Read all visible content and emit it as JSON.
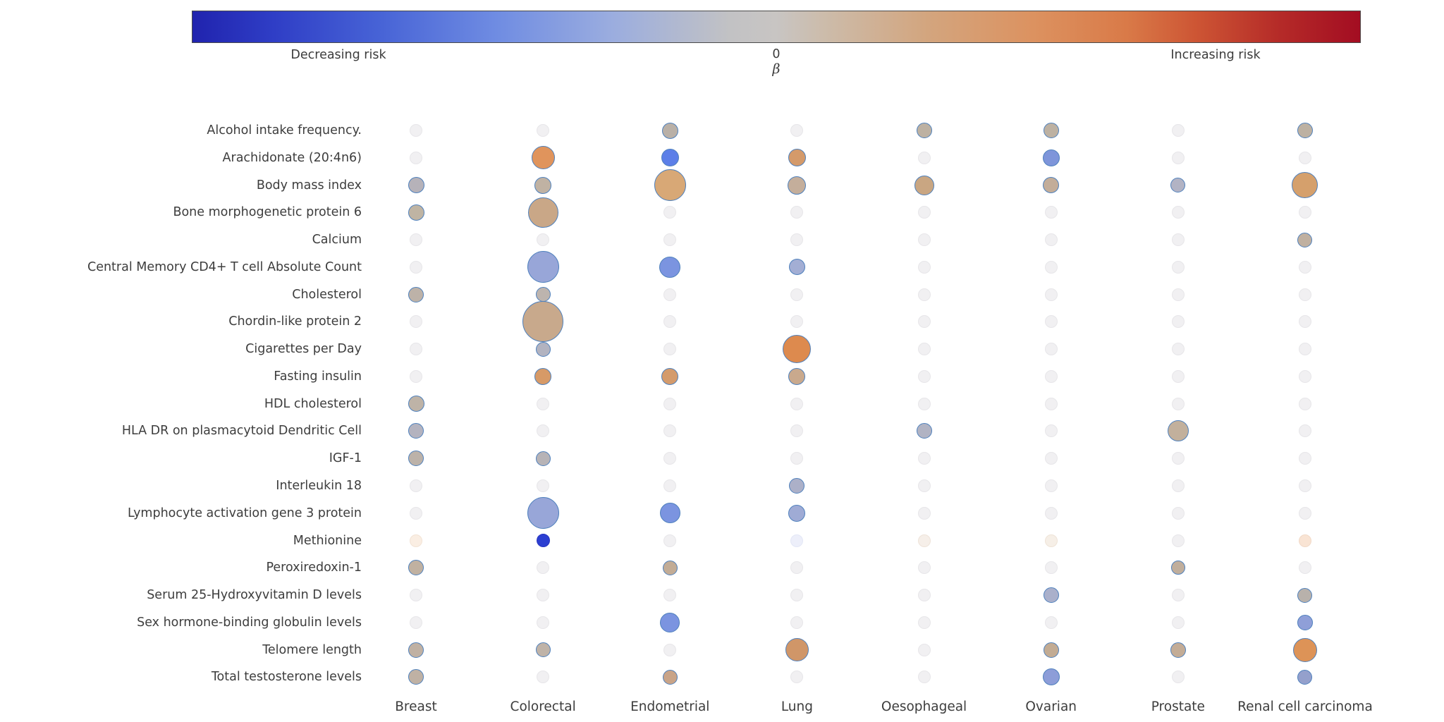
{
  "chart_data": {
    "type": "bubble-matrix",
    "title": "",
    "description": "Bubble matrix of exposures (rows) vs cancer sites (columns); bubble colour encodes beta effect direction (blue decreasing risk, red increasing risk), bubble size encodes magnitude/strength",
    "colorbar": {
      "label_left": "Decreasing risk",
      "tick_center": "0",
      "axis_label": "β",
      "label_right": "Increasing risk",
      "gradient_stops": [
        [
          "#2023ae",
          0
        ],
        [
          "#2f3ec6",
          7
        ],
        [
          "#4763d6",
          16
        ],
        [
          "#6f8ce2",
          26
        ],
        [
          "#9baddf",
          36
        ],
        [
          "#c2c2c4",
          46
        ],
        [
          "#c8c5c3",
          50
        ],
        [
          "#ccbcab",
          54
        ],
        [
          "#d3a57e",
          63
        ],
        [
          "#dc9260",
          72
        ],
        [
          "#d97a48",
          80
        ],
        [
          "#cd5534",
          86
        ],
        [
          "#b52b28",
          93
        ],
        [
          "#a30d22",
          100
        ]
      ]
    },
    "columns": [
      "Breast",
      "Colorectal",
      "Endometrial",
      "Lung",
      "Oesophageal",
      "Ovarian",
      "Prostate",
      "Renal cell carcinoma"
    ],
    "rows": [
      "Alcohol intake frequency.",
      "Arachidonate (20:4n6)",
      "Body mass index",
      "Bone morphogenetic protein 6",
      "Calcium",
      "Central Memory CD4+ T cell Absolute Count",
      "Cholesterol",
      "Chordin-like protein 2",
      "Cigarettes per Day",
      "Fasting insulin",
      "HDL cholesterol",
      "HLA DR on plasmacytoid Dendritic Cell",
      "IGF-1",
      "Interleukin 18",
      "Lymphocyte activation gene 3 protein",
      "Methionine",
      "Peroxiredoxin-1",
      "Serum 25-Hydroxyvitamin D levels",
      "Sex hormone-binding globulin levels",
      "Telomere length",
      "Total testosterone levels"
    ],
    "default_bubble": {
      "d": 18,
      "fill": "#f1f0f2",
      "stroke": "#e7e6e9"
    },
    "visible_stroke": "#4f81bd",
    "cells": [
      [
        null,
        null,
        {
          "d": 23,
          "fill": "#b9b0a7"
        },
        null,
        {
          "d": 22,
          "fill": "#bdb1a2"
        },
        {
          "d": 22,
          "fill": "#bdb1a2"
        },
        null,
        {
          "d": 22,
          "fill": "#bdb1a2"
        }
      ],
      [
        null,
        {
          "d": 33,
          "fill": "#e0945c"
        },
        {
          "d": 25,
          "fill": "#5c7fe8"
        },
        {
          "d": 25,
          "fill": "#d49a6a"
        },
        null,
        {
          "d": 24,
          "fill": "#7e95da"
        },
        null,
        null
      ],
      [
        {
          "d": 23,
          "fill": "#b6b2b9"
        },
        {
          "d": 24,
          "fill": "#c0b2a3"
        },
        {
          "d": 45,
          "fill": "#d8a876"
        },
        {
          "d": 26,
          "fill": "#c4ae9b"
        },
        {
          "d": 28,
          "fill": "#c9a682"
        },
        {
          "d": 23,
          "fill": "#c3ad99"
        },
        {
          "d": 21,
          "fill": "#b2b3c4"
        },
        {
          "d": 37,
          "fill": "#d5a06c"
        }
      ],
      [
        {
          "d": 23,
          "fill": "#bfb4a3"
        },
        {
          "d": 43,
          "fill": "#c9a787"
        },
        null,
        null,
        null,
        null,
        null,
        null
      ],
      [
        null,
        null,
        null,
        null,
        null,
        null,
        null,
        {
          "d": 21,
          "fill": "#c0b0a0"
        }
      ],
      [
        null,
        {
          "d": 45,
          "fill": "#98a6d8"
        },
        {
          "d": 30,
          "fill": "#7b94e0"
        },
        {
          "d": 23,
          "fill": "#a3aed4"
        },
        null,
        null,
        null,
        null
      ],
      [
        {
          "d": 22,
          "fill": "#bdb2a8"
        },
        {
          "d": 21,
          "fill": "#bdb4ae"
        },
        null,
        null,
        null,
        null,
        null,
        null
      ],
      [
        null,
        {
          "d": 58,
          "fill": "#c8a98c"
        },
        null,
        null,
        null,
        null,
        null,
        null
      ],
      [
        null,
        {
          "d": 21,
          "fill": "#b2b3c0"
        },
        null,
        {
          "d": 40,
          "fill": "#dd8a4e"
        },
        null,
        null,
        null,
        null
      ],
      [
        null,
        {
          "d": 24,
          "fill": "#d79a67"
        },
        {
          "d": 24,
          "fill": "#d49b6c"
        },
        {
          "d": 24,
          "fill": "#c9a98d"
        },
        null,
        null,
        null,
        null
      ],
      [
        {
          "d": 23,
          "fill": "#beb3a7"
        },
        null,
        null,
        null,
        null,
        null,
        null,
        null
      ],
      [
        {
          "d": 22,
          "fill": "#b4b3bf"
        },
        null,
        null,
        null,
        {
          "d": 22,
          "fill": "#b1b3c3"
        },
        null,
        {
          "d": 30,
          "fill": "#c2b09c"
        },
        null
      ],
      [
        {
          "d": 22,
          "fill": "#bcb2a9"
        },
        {
          "d": 21,
          "fill": "#b7b3b6"
        },
        null,
        null,
        null,
        null,
        null,
        null
      ],
      [
        null,
        null,
        null,
        {
          "d": 22,
          "fill": "#acb0c8"
        },
        null,
        null,
        null,
        null
      ],
      [
        null,
        {
          "d": 45,
          "fill": "#98a6d8"
        },
        {
          "d": 29,
          "fill": "#7b94e0"
        },
        {
          "d": 24,
          "fill": "#9fabd5"
        },
        null,
        null,
        null,
        null
      ],
      [
        {
          "d": 18,
          "fill": "#faeee3",
          "stroke": "#f2e3d5"
        },
        {
          "d": 19,
          "fill": "#2c3fd1",
          "stroke": "#2936c0"
        },
        null,
        {
          "d": 18,
          "fill": "#edeffa",
          "stroke": "#e3e7f6"
        },
        {
          "d": 18,
          "fill": "#f6efe9",
          "stroke": "#eee3d9"
        },
        {
          "d": 18,
          "fill": "#f6efe7",
          "stroke": "#eee3d7"
        },
        null,
        {
          "d": 18,
          "fill": "#f9e4d4",
          "stroke": "#f1d9c7"
        }
      ],
      [
        {
          "d": 22,
          "fill": "#c0b1a1"
        },
        null,
        {
          "d": 21,
          "fill": "#c2ac96"
        },
        null,
        null,
        null,
        {
          "d": 20,
          "fill": "#c0ae9c"
        },
        null
      ],
      [
        null,
        null,
        null,
        null,
        null,
        {
          "d": 22,
          "fill": "#aab0cb"
        },
        null,
        {
          "d": 21,
          "fill": "#b8b1ab"
        }
      ],
      [
        null,
        null,
        {
          "d": 28,
          "fill": "#7b94e0"
        },
        null,
        null,
        null,
        null,
        {
          "d": 22,
          "fill": "#8f9fd8"
        }
      ],
      [
        {
          "d": 22,
          "fill": "#c0b1a3"
        },
        {
          "d": 21,
          "fill": "#bfb3a8"
        },
        null,
        {
          "d": 33,
          "fill": "#d09668"
        },
        null,
        {
          "d": 22,
          "fill": "#c2ab93"
        },
        {
          "d": 22,
          "fill": "#c3ac96"
        },
        {
          "d": 34,
          "fill": "#dd9357"
        }
      ],
      [
        {
          "d": 22,
          "fill": "#bfb1a4"
        },
        null,
        {
          "d": 21,
          "fill": "#c9a488"
        },
        null,
        null,
        {
          "d": 24,
          "fill": "#8d9dd8"
        },
        null,
        {
          "d": 21,
          "fill": "#94a0cc"
        }
      ]
    ],
    "layout": {
      "grid_on": false,
      "legend_position": "top-colorbar",
      "x_axis": "cancer site",
      "y_axis": "exposure / biomarker"
    }
  }
}
